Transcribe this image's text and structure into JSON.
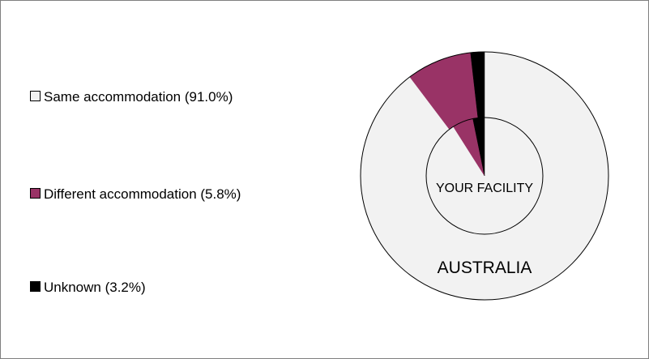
{
  "chart_data": {
    "type": "nested-pie",
    "categories": [
      "Same accommodation (91.0%)",
      "Different accommodation (5.8%)",
      "Unknown (3.2%)"
    ],
    "colors": [
      "#f2f2f2",
      "#993366",
      "#000000"
    ],
    "series": [
      {
        "name": "AUSTRALIA",
        "values": [
          89.7,
          8.5,
          1.8
        ]
      },
      {
        "name": "YOUR FACILITY",
        "values": [
          91.0,
          5.8,
          3.2
        ]
      }
    ]
  }
}
